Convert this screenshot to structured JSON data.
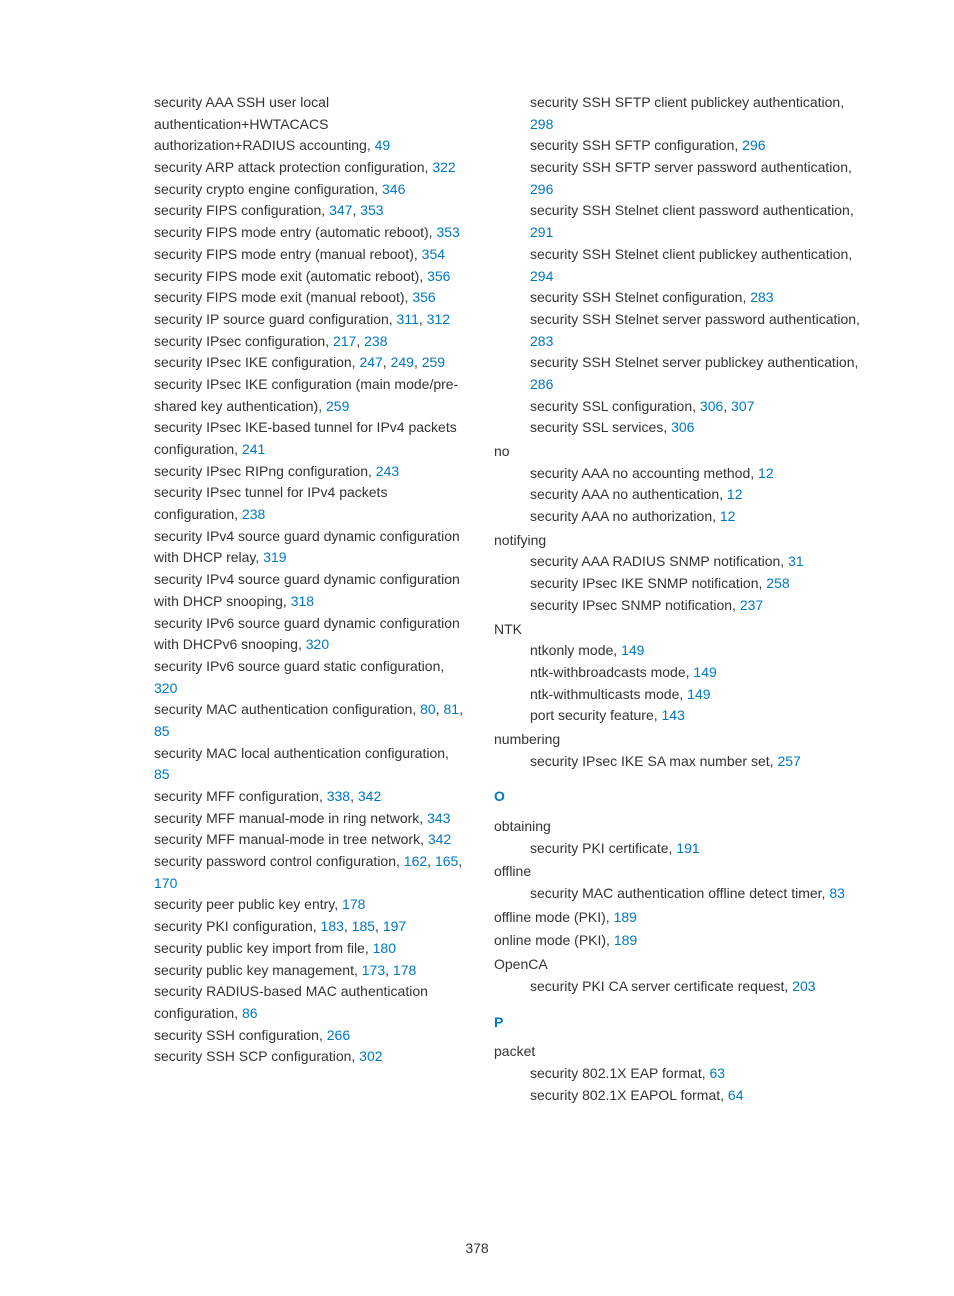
{
  "page_number": "378",
  "link_color": "#0078c1",
  "text_color": "#333333",
  "background_color": "#ffffff",
  "font_family": "Arial, Helvetica, sans-serif",
  "font_size_pt": 11,
  "columns": {
    "left": [
      {
        "type": "subentry",
        "text": "security AAA SSH user local authentication+HWTACACS authorization+RADIUS accounting, ",
        "links": [
          "49"
        ]
      },
      {
        "type": "subentry",
        "text": "security ARP attack protection configuration, ",
        "links": [
          "322"
        ]
      },
      {
        "type": "subentry",
        "text": "security crypto engine configuration, ",
        "links": [
          "346"
        ]
      },
      {
        "type": "subentry",
        "text": "security FIPS configuration, ",
        "links": [
          "347",
          "353"
        ]
      },
      {
        "type": "subentry",
        "text": "security FIPS mode entry (automatic reboot), ",
        "links": [
          "353"
        ]
      },
      {
        "type": "subentry",
        "text": "security FIPS mode entry (manual reboot), ",
        "links": [
          "354"
        ]
      },
      {
        "type": "subentry",
        "text": "security FIPS mode exit (automatic reboot), ",
        "links": [
          "356"
        ]
      },
      {
        "type": "subentry",
        "text": "security FIPS mode exit (manual reboot), ",
        "links": [
          "356"
        ]
      },
      {
        "type": "subentry",
        "text": "security IP source guard configuration, ",
        "links": [
          "311",
          "312"
        ]
      },
      {
        "type": "subentry",
        "text": "security IPsec configuration, ",
        "links": [
          "217",
          "238"
        ]
      },
      {
        "type": "subentry",
        "text": "security IPsec IKE configuration, ",
        "links": [
          "247",
          "249",
          "259"
        ]
      },
      {
        "type": "subentry",
        "text": "security IPsec IKE configuration (main mode/pre-shared key authentication), ",
        "links": [
          "259"
        ]
      },
      {
        "type": "subentry",
        "text": "security IPsec IKE-based tunnel for IPv4 packets configuration, ",
        "links": [
          "241"
        ]
      },
      {
        "type": "subentry",
        "text": "security IPsec RIPng configuration, ",
        "links": [
          "243"
        ]
      },
      {
        "type": "subentry",
        "text": "security IPsec tunnel for IPv4 packets configuration, ",
        "links": [
          "238"
        ]
      },
      {
        "type": "subentry",
        "text": "security IPv4 source guard dynamic configuration with DHCP relay, ",
        "links": [
          "319"
        ]
      },
      {
        "type": "subentry",
        "text": "security IPv4 source guard dynamic configuration with DHCP snooping, ",
        "links": [
          "318"
        ]
      },
      {
        "type": "subentry",
        "text": "security IPv6 source guard dynamic configuration with DHCPv6 snooping, ",
        "links": [
          "320"
        ]
      },
      {
        "type": "subentry",
        "text": "security IPv6 source guard static configuration, ",
        "links": [
          "320"
        ]
      },
      {
        "type": "subentry",
        "text": "security MAC authentication configuration, ",
        "links": [
          "80",
          "81",
          "85"
        ]
      },
      {
        "type": "subentry",
        "text": "security MAC local authentication configuration, ",
        "links": [
          "85"
        ]
      },
      {
        "type": "subentry",
        "text": "security MFF configuration, ",
        "links": [
          "338",
          "342"
        ]
      },
      {
        "type": "subentry",
        "text": "security MFF manual-mode in ring network, ",
        "links": [
          "343"
        ]
      },
      {
        "type": "subentry",
        "text": "security MFF manual-mode in tree network, ",
        "links": [
          "342"
        ]
      },
      {
        "type": "subentry",
        "text": "security password control configuration, ",
        "links": [
          "162",
          "165",
          "170"
        ]
      },
      {
        "type": "subentry",
        "text": "security peer public key entry, ",
        "links": [
          "178"
        ]
      },
      {
        "type": "subentry",
        "text": "security PKI configuration, ",
        "links": [
          "183",
          "185",
          "197"
        ]
      },
      {
        "type": "subentry",
        "text": "security public key import from file, ",
        "links": [
          "180"
        ]
      },
      {
        "type": "subentry",
        "text": "security public key management, ",
        "links": [
          "173",
          "178"
        ]
      },
      {
        "type": "subentry",
        "text": "security RADIUS-based MAC authentication configuration, ",
        "links": [
          "86"
        ]
      },
      {
        "type": "subentry",
        "text": "security SSH configuration, ",
        "links": [
          "266"
        ]
      },
      {
        "type": "subentry",
        "text": "security SSH SCP configuration, ",
        "links": [
          "302"
        ]
      }
    ],
    "right": [
      {
        "type": "subentry",
        "text": "security SSH SFTP client publickey authentication, ",
        "links": [
          "298"
        ]
      },
      {
        "type": "subentry",
        "text": "security SSH SFTP configuration, ",
        "links": [
          "296"
        ]
      },
      {
        "type": "subentry",
        "text": "security SSH SFTP server password authentication, ",
        "links": [
          "296"
        ]
      },
      {
        "type": "subentry",
        "text": "security SSH Stelnet client password authentication, ",
        "links": [
          "291"
        ]
      },
      {
        "type": "subentry",
        "text": "security SSH Stelnet client publickey authentication, ",
        "links": [
          "294"
        ]
      },
      {
        "type": "subentry",
        "text": "security SSH Stelnet configuration, ",
        "links": [
          "283"
        ]
      },
      {
        "type": "subentry",
        "text": "security SSH Stelnet server password authentication, ",
        "links": [
          "283"
        ]
      },
      {
        "type": "subentry",
        "text": "security SSH Stelnet server publickey authentication, ",
        "links": [
          "286"
        ]
      },
      {
        "type": "subentry",
        "text": "security SSL configuration, ",
        "links": [
          "306",
          "307"
        ]
      },
      {
        "type": "subentry",
        "text": "security SSL services, ",
        "links": [
          "306"
        ]
      },
      {
        "type": "heading",
        "text": "no"
      },
      {
        "type": "subentry",
        "text": "security AAA no accounting method, ",
        "links": [
          "12"
        ]
      },
      {
        "type": "subentry",
        "text": "security AAA no authentication, ",
        "links": [
          "12"
        ]
      },
      {
        "type": "subentry",
        "text": "security AAA no authorization, ",
        "links": [
          "12"
        ]
      },
      {
        "type": "heading",
        "text": "notifying"
      },
      {
        "type": "subentry",
        "text": "security AAA RADIUS SNMP notification, ",
        "links": [
          "31"
        ]
      },
      {
        "type": "subentry",
        "text": "security IPsec IKE SNMP notification, ",
        "links": [
          "258"
        ]
      },
      {
        "type": "subentry",
        "text": "security IPsec SNMP notification, ",
        "links": [
          "237"
        ]
      },
      {
        "type": "heading",
        "text": "NTK"
      },
      {
        "type": "subentry",
        "text": "ntkonly mode, ",
        "links": [
          "149"
        ]
      },
      {
        "type": "subentry",
        "text": "ntk-withbroadcasts mode, ",
        "links": [
          "149"
        ]
      },
      {
        "type": "subentry",
        "text": "ntk-withmulticasts mode, ",
        "links": [
          "149"
        ]
      },
      {
        "type": "subentry",
        "text": "port security feature, ",
        "links": [
          "143"
        ]
      },
      {
        "type": "heading",
        "text": "numbering"
      },
      {
        "type": "subentry",
        "text": "security IPsec IKE SA max number set, ",
        "links": [
          "257"
        ]
      },
      {
        "type": "letter",
        "text": "O"
      },
      {
        "type": "heading",
        "text": "obtaining"
      },
      {
        "type": "subentry",
        "text": "security PKI certificate, ",
        "links": [
          "191"
        ]
      },
      {
        "type": "heading",
        "text": "offline"
      },
      {
        "type": "subentry",
        "text": "security MAC authentication offline detect timer, ",
        "links": [
          "83"
        ]
      },
      {
        "type": "heading",
        "text": "offline mode (PKI), ",
        "links": [
          "189"
        ]
      },
      {
        "type": "heading",
        "text": "online mode (PKI), ",
        "links": [
          "189"
        ]
      },
      {
        "type": "heading",
        "text": "OpenCA"
      },
      {
        "type": "subentry",
        "text": "security PKI CA server certificate request, ",
        "links": [
          "203"
        ]
      },
      {
        "type": "letter",
        "text": "P"
      },
      {
        "type": "heading",
        "text": "packet"
      },
      {
        "type": "subentry",
        "text": "security 802.1X EAP format, ",
        "links": [
          "63"
        ]
      },
      {
        "type": "subentry",
        "text": "security 802.1X EAPOL format, ",
        "links": [
          "64"
        ]
      }
    ]
  }
}
